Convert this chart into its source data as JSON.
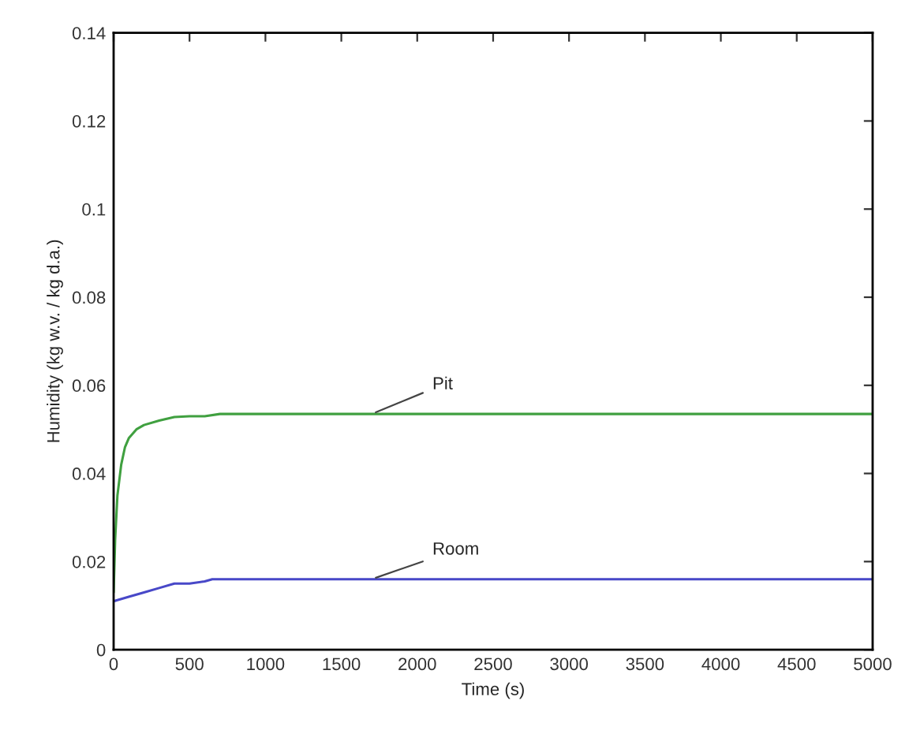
{
  "chart_data": {
    "type": "line",
    "xlabel": "Time (s)",
    "ylabel": "Humidity (kg w.v. / kg d.a.)",
    "xlim": [
      0,
      5000
    ],
    "ylim": [
      0,
      0.14
    ],
    "xticks": [
      0,
      500,
      1000,
      1500,
      2000,
      2500,
      3000,
      3500,
      4000,
      4500,
      5000
    ],
    "yticks": [
      0,
      0.02,
      0.04,
      0.06,
      0.08,
      0.1,
      0.12,
      0.14
    ],
    "grid": false,
    "legend": false,
    "line_style": "solid",
    "series": [
      {
        "color": "#40a040",
        "x": [
          0,
          10,
          25,
          50,
          75,
          100,
          150,
          200,
          300,
          400,
          500,
          600,
          700,
          1000,
          2000,
          3000,
          4000,
          5000
        ],
        "values": [
          0.013,
          0.025,
          0.035,
          0.042,
          0.046,
          0.048,
          0.05,
          0.051,
          0.052,
          0.0528,
          0.053,
          0.053,
          0.0535,
          0.0535,
          0.0535,
          0.0535,
          0.0535,
          0.0535
        ]
      },
      {
        "color": "#4848c8",
        "x": [
          0,
          100,
          200,
          300,
          400,
          500,
          600,
          650,
          1000,
          2000,
          3000,
          4000,
          5000
        ],
        "values": [
          0.011,
          0.012,
          0.013,
          0.014,
          0.015,
          0.015,
          0.0155,
          0.016,
          0.016,
          0.016,
          0.016,
          0.016,
          0.016
        ]
      }
    ],
    "annotations": [
      {
        "text": "Pit",
        "x": 1700,
        "y": 0.0535
      },
      {
        "text": "Room",
        "x": 1700,
        "y": 0.016
      }
    ]
  }
}
